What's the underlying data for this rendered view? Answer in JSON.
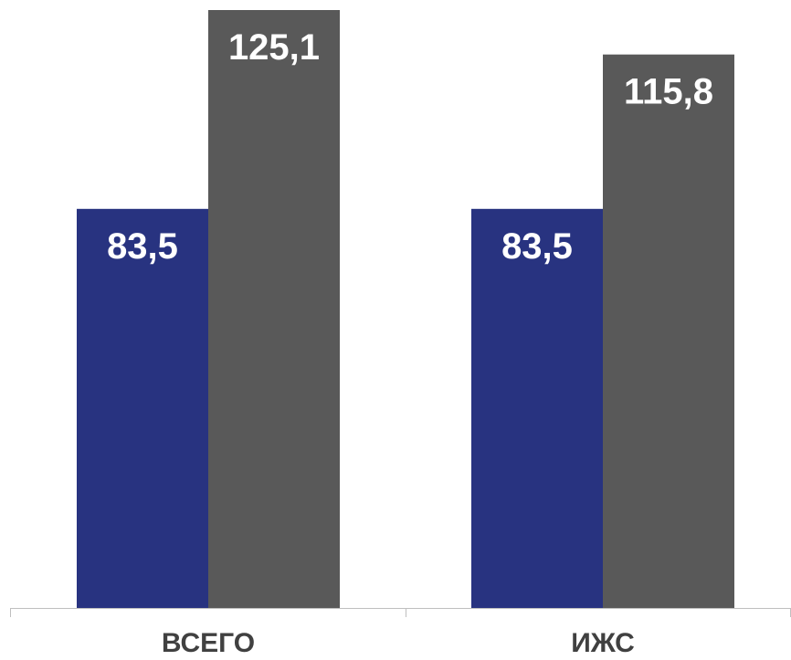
{
  "chart_data": {
    "type": "bar",
    "categories": [
      "ВСЕГО",
      "ИЖС"
    ],
    "series": [
      {
        "values": [
          83.5,
          83.5
        ],
        "labels": [
          "83,5",
          "83,5"
        ],
        "color": "#283380"
      },
      {
        "values": [
          125.1,
          115.8
        ],
        "labels": [
          "125,1",
          "115,8"
        ],
        "color": "#595959"
      }
    ],
    "title": "",
    "xlabel": "",
    "ylabel": "",
    "ylim": [
      0,
      125.1
    ],
    "grid": false,
    "legend": "none",
    "colors": {
      "axis": "#bfbfbf",
      "category_label": "#404040",
      "data_label": "#ffffff"
    }
  }
}
